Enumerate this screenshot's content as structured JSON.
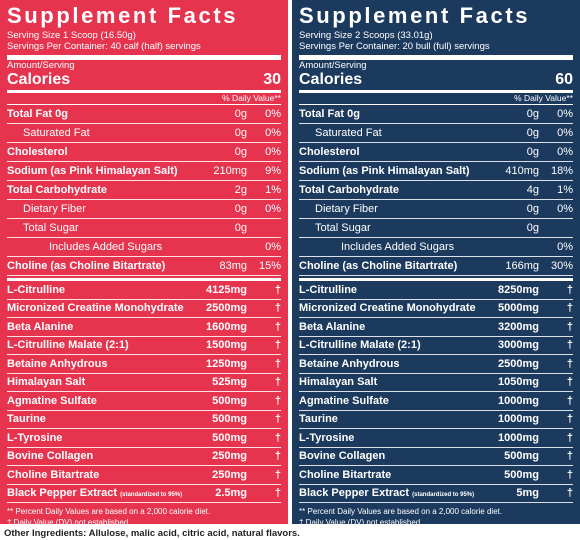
{
  "panels": [
    {
      "title": "Supplement Facts",
      "serving_size": "Serving Size 1 Scoop (16.50g)",
      "servings": "Servings Per Container: 40 calf (half) servings",
      "amount_label": "Amount/Serving",
      "calories_label": "Calories",
      "calories": "30",
      "dv_header": "% Daily Value**",
      "nutrients": [
        {
          "name": "Total Fat 0g",
          "amount": "0g",
          "dv": "0%",
          "bold": true
        },
        {
          "name": "Saturated Fat",
          "amount": "0g",
          "dv": "0%",
          "indent": 1
        },
        {
          "name": "Cholesterol",
          "amount": "0g",
          "dv": "0%",
          "bold": true
        },
        {
          "name": "Sodium (as Pink Himalayan Salt)",
          "amount": "210mg",
          "dv": "9%",
          "bold": true
        },
        {
          "name": "Total Carbohydrate",
          "amount": "2g",
          "dv": "1%",
          "bold": true
        },
        {
          "name": "Dietary Fiber",
          "amount": "0g",
          "dv": "0%",
          "indent": 1
        },
        {
          "name": "Total Sugar",
          "amount": "0g",
          "indent": 1
        },
        {
          "name": "Includes Added Sugars",
          "dv": "0%",
          "indent": 2
        },
        {
          "name": "Choline (as Choline Bitartrate)",
          "amount": "83mg",
          "dv": "15%",
          "bold": true
        }
      ],
      "ingredients": [
        {
          "name": "L-Citrulline",
          "amount": "4125mg",
          "dv": "†"
        },
        {
          "name": "Micronized Creatine Monohydrate",
          "amount": "2500mg",
          "dv": "†"
        },
        {
          "name": "Beta Alanine",
          "amount": "1600mg",
          "dv": "†"
        },
        {
          "name": "L-Citrulline Malate (2:1)",
          "amount": "1500mg",
          "dv": "†"
        },
        {
          "name": "Betaine Anhydrous",
          "amount": "1250mg",
          "dv": "†"
        },
        {
          "name": "Himalayan Salt",
          "amount": "525mg",
          "dv": "†"
        },
        {
          "name": "Agmatine Sulfate",
          "amount": "500mg",
          "dv": "†"
        },
        {
          "name": "Taurine",
          "amount": "500mg",
          "dv": "†"
        },
        {
          "name": "L-Tyrosine",
          "amount": "500mg",
          "dv": "†"
        },
        {
          "name": "Bovine Collagen",
          "amount": "250mg",
          "dv": "†"
        },
        {
          "name": "Choline Bitartrate",
          "amount": "250mg",
          "dv": "†"
        },
        {
          "name": "Black Pepper Extract",
          "note": "(standardized to 95%)",
          "amount": "2.5mg",
          "dv": "†"
        }
      ],
      "footnotes": [
        "** Percent Daily Values are based on a 2,000 calorie diet.",
        "† Daily Value (DV) not established"
      ]
    },
    {
      "title": "Supplement Facts",
      "serving_size": "Serving Size 2 Scoops (33.01g)",
      "servings": "Servings Per Container: 20 bull (full) servings",
      "amount_label": "Amount/Serving",
      "calories_label": "Calories",
      "calories": "60",
      "dv_header": "% Daily Value**",
      "nutrients": [
        {
          "name": "Total Fat 0g",
          "amount": "0g",
          "dv": "0%",
          "bold": true
        },
        {
          "name": "Saturated Fat",
          "amount": "0g",
          "dv": "0%",
          "indent": 1
        },
        {
          "name": "Cholesterol",
          "amount": "0g",
          "dv": "0%",
          "bold": true
        },
        {
          "name": "Sodium (as Pink Himalayan Salt)",
          "amount": "410mg",
          "dv": "18%",
          "bold": true
        },
        {
          "name": "Total Carbohydrate",
          "amount": "4g",
          "dv": "1%",
          "bold": true
        },
        {
          "name": "Dietary Fiber",
          "amount": "0g",
          "dv": "0%",
          "indent": 1
        },
        {
          "name": "Total Sugar",
          "amount": "0g",
          "indent": 1
        },
        {
          "name": "Includes Added Sugars",
          "dv": "0%",
          "indent": 2
        },
        {
          "name": "Choline (as Choline Bitartrate)",
          "amount": "166mg",
          "dv": "30%",
          "bold": true
        }
      ],
      "ingredients": [
        {
          "name": "L-Citrulline",
          "amount": "8250mg",
          "dv": "†"
        },
        {
          "name": "Micronized Creatine Monohydrate",
          "amount": "5000mg",
          "dv": "†"
        },
        {
          "name": "Beta Alanine",
          "amount": "3200mg",
          "dv": "†"
        },
        {
          "name": "L-Citrulline Malate (2:1)",
          "amount": "3000mg",
          "dv": "†"
        },
        {
          "name": "Betaine Anhydrous",
          "amount": "2500mg",
          "dv": "†"
        },
        {
          "name": "Himalayan Salt",
          "amount": "1050mg",
          "dv": "†"
        },
        {
          "name": "Agmatine Sulfate",
          "amount": "1000mg",
          "dv": "†"
        },
        {
          "name": "Taurine",
          "amount": "1000mg",
          "dv": "†"
        },
        {
          "name": "L-Tyrosine",
          "amount": "1000mg",
          "dv": "†"
        },
        {
          "name": "Bovine Collagen",
          "amount": "500mg",
          "dv": "†"
        },
        {
          "name": "Choline Bitartrate",
          "amount": "500mg",
          "dv": "†"
        },
        {
          "name": "Black Pepper Extract",
          "note": "(standardized to 95%)",
          "amount": "5mg",
          "dv": "†"
        }
      ],
      "footnotes": [
        "** Percent Daily Values are based on a 2,000 calorie diet.",
        "† Daily Value (DV) not established"
      ]
    }
  ],
  "other_ingredients": "Other Ingredients: Allulose, malic acid, citric acid, natural flavors."
}
